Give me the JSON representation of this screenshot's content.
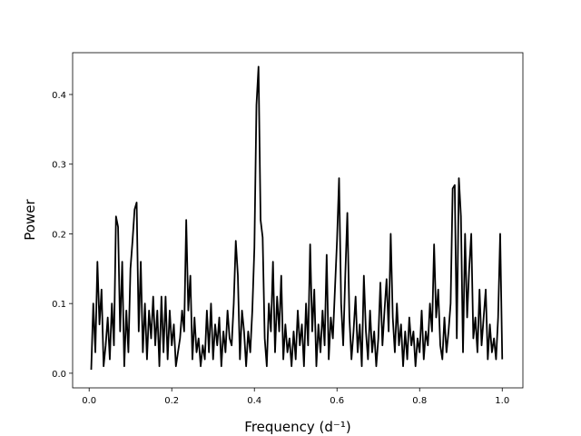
{
  "chart_data": {
    "type": "line",
    "xlabel": "Frequency (d⁻¹)",
    "ylabel": "Power",
    "x": [
      0.005,
      0.01,
      0.015,
      0.02,
      0.025,
      0.03,
      0.035,
      0.04,
      0.045,
      0.05,
      0.055,
      0.06,
      0.065,
      0.07,
      0.075,
      0.08,
      0.085,
      0.09,
      0.095,
      0.1,
      0.105,
      0.11,
      0.115,
      0.12,
      0.125,
      0.13,
      0.135,
      0.14,
      0.145,
      0.15,
      0.155,
      0.16,
      0.165,
      0.17,
      0.175,
      0.18,
      0.185,
      0.19,
      0.195,
      0.2,
      0.205,
      0.21,
      0.215,
      0.22,
      0.225,
      0.23,
      0.235,
      0.24,
      0.245,
      0.25,
      0.255,
      0.26,
      0.265,
      0.27,
      0.275,
      0.28,
      0.285,
      0.29,
      0.295,
      0.3,
      0.305,
      0.31,
      0.315,
      0.32,
      0.325,
      0.33,
      0.335,
      0.34,
      0.345,
      0.35,
      0.355,
      0.36,
      0.365,
      0.37,
      0.375,
      0.38,
      0.385,
      0.39,
      0.395,
      0.4,
      0.405,
      0.41,
      0.415,
      0.42,
      0.425,
      0.43,
      0.435,
      0.44,
      0.445,
      0.45,
      0.455,
      0.46,
      0.465,
      0.47,
      0.475,
      0.48,
      0.485,
      0.49,
      0.495,
      0.5,
      0.505,
      0.51,
      0.515,
      0.52,
      0.525,
      0.53,
      0.535,
      0.54,
      0.545,
      0.55,
      0.555,
      0.56,
      0.565,
      0.57,
      0.575,
      0.58,
      0.585,
      0.59,
      0.595,
      0.6,
      0.605,
      0.61,
      0.615,
      0.62,
      0.625,
      0.63,
      0.635,
      0.64,
      0.645,
      0.65,
      0.655,
      0.66,
      0.665,
      0.67,
      0.675,
      0.68,
      0.685,
      0.69,
      0.695,
      0.7,
      0.705,
      0.71,
      0.715,
      0.72,
      0.725,
      0.73,
      0.735,
      0.74,
      0.745,
      0.75,
      0.755,
      0.76,
      0.765,
      0.77,
      0.775,
      0.78,
      0.785,
      0.79,
      0.795,
      0.8,
      0.805,
      0.81,
      0.815,
      0.82,
      0.825,
      0.83,
      0.835,
      0.84,
      0.845,
      0.85,
      0.855,
      0.86,
      0.865,
      0.87,
      0.875,
      0.88,
      0.885,
      0.89,
      0.895,
      0.9,
      0.905,
      0.91,
      0.915,
      0.92,
      0.925,
      0.93,
      0.935,
      0.94,
      0.945,
      0.95,
      0.955,
      0.96,
      0.965,
      0.97,
      0.975,
      0.98,
      0.985,
      0.99,
      0.995,
      1.0
    ],
    "series": [
      {
        "color": "#000000",
        "values": [
          0.005,
          0.1,
          0.03,
          0.16,
          0.07,
          0.12,
          0.01,
          0.04,
          0.08,
          0.02,
          0.1,
          0.04,
          0.225,
          0.21,
          0.06,
          0.16,
          0.01,
          0.09,
          0.03,
          0.15,
          0.19,
          0.235,
          0.245,
          0.06,
          0.16,
          0.03,
          0.1,
          0.02,
          0.09,
          0.05,
          0.11,
          0.04,
          0.09,
          0.01,
          0.11,
          0.03,
          0.11,
          0.02,
          0.09,
          0.04,
          0.07,
          0.01,
          0.03,
          0.05,
          0.09,
          0.06,
          0.22,
          0.09,
          0.14,
          0.02,
          0.08,
          0.03,
          0.05,
          0.01,
          0.04,
          0.02,
          0.09,
          0.03,
          0.1,
          0.02,
          0.07,
          0.04,
          0.08,
          0.01,
          0.06,
          0.03,
          0.09,
          0.05,
          0.04,
          0.1,
          0.19,
          0.14,
          0.02,
          0.09,
          0.06,
          0.01,
          0.06,
          0.03,
          0.09,
          0.18,
          0.385,
          0.44,
          0.22,
          0.195,
          0.05,
          0.01,
          0.1,
          0.06,
          0.16,
          0.03,
          0.11,
          0.06,
          0.14,
          0.02,
          0.07,
          0.03,
          0.05,
          0.01,
          0.06,
          0.02,
          0.09,
          0.04,
          0.07,
          0.01,
          0.1,
          0.04,
          0.185,
          0.06,
          0.12,
          0.01,
          0.07,
          0.03,
          0.09,
          0.04,
          0.17,
          0.02,
          0.08,
          0.05,
          0.12,
          0.19,
          0.28,
          0.1,
          0.04,
          0.14,
          0.23,
          0.08,
          0.02,
          0.06,
          0.11,
          0.03,
          0.07,
          0.01,
          0.14,
          0.06,
          0.02,
          0.09,
          0.03,
          0.06,
          0.01,
          0.05,
          0.13,
          0.04,
          0.09,
          0.135,
          0.06,
          0.2,
          0.08,
          0.03,
          0.1,
          0.04,
          0.07,
          0.01,
          0.06,
          0.02,
          0.08,
          0.04,
          0.06,
          0.01,
          0.05,
          0.03,
          0.09,
          0.02,
          0.06,
          0.04,
          0.1,
          0.06,
          0.185,
          0.08,
          0.12,
          0.04,
          0.02,
          0.08,
          0.03,
          0.06,
          0.1,
          0.265,
          0.27,
          0.05,
          0.28,
          0.225,
          0.03,
          0.2,
          0.08,
          0.15,
          0.2,
          0.05,
          0.08,
          0.03,
          0.12,
          0.04,
          0.08,
          0.12,
          0.02,
          0.07,
          0.03,
          0.05,
          0.02,
          0.08,
          0.2,
          0.02
        ]
      }
    ],
    "xlim": [
      -0.04,
      1.05
    ],
    "ylim": [
      -0.021,
      0.46
    ],
    "xticks": [
      {
        "value": 0,
        "label": "0.0"
      },
      0.2,
      0.4,
      0.6,
      0.8,
      {
        "value": 1,
        "label": "1.0"
      }
    ],
    "yticks": [
      {
        "value": 0,
        "label": "0.0"
      },
      0.1,
      0.2,
      0.3,
      0.4
    ]
  }
}
